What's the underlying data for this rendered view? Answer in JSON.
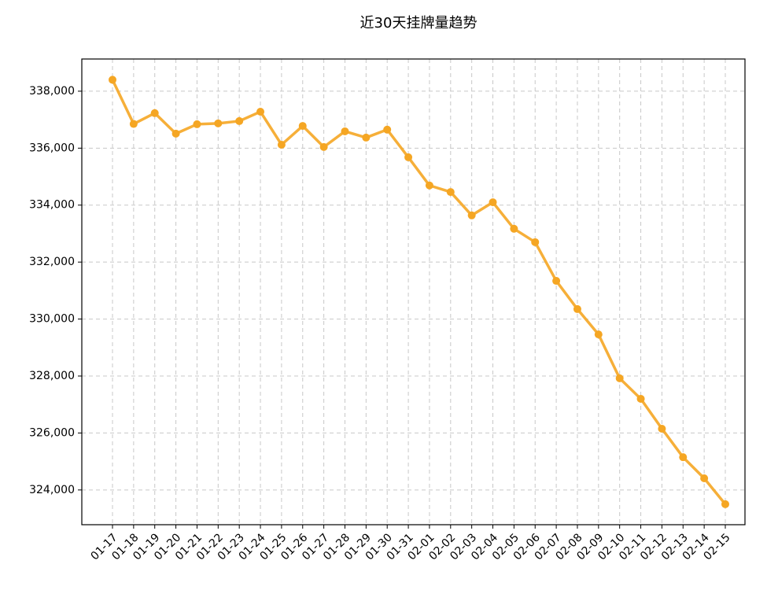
{
  "chart_data": {
    "type": "line",
    "title": "近30天挂牌量趋势",
    "categories": [
      "01-17",
      "01-18",
      "01-19",
      "01-20",
      "01-21",
      "01-22",
      "01-23",
      "01-24",
      "01-25",
      "01-26",
      "01-27",
      "01-28",
      "01-29",
      "01-30",
      "01-31",
      "02-01",
      "02-02",
      "02-03",
      "02-04",
      "02-05",
      "02-06",
      "02-07",
      "02-08",
      "02-09",
      "02-10",
      "02-11",
      "02-12",
      "02-13",
      "02-14",
      "02-15"
    ],
    "series": [
      {
        "color": "#f5a623",
        "values": [
          338400,
          336850,
          337230,
          336510,
          336840,
          336870,
          336950,
          337280,
          336120,
          336780,
          336040,
          336590,
          336370,
          336650,
          335680,
          334690,
          334460,
          333640,
          334100,
          333170,
          332700,
          331340,
          330350,
          329460,
          327920,
          327200,
          326150,
          325150,
          324410,
          323500
        ]
      }
    ],
    "ylim": [
      322780,
      339130
    ],
    "yticks": [
      {
        "value": 324000,
        "label": "324,000"
      },
      {
        "value": 326000,
        "label": "326,000"
      },
      {
        "value": 328000,
        "label": "328,000"
      },
      {
        "value": 330000,
        "label": "330,000"
      },
      {
        "value": 332000,
        "label": "332,000"
      },
      {
        "value": 334000,
        "label": "334,000"
      },
      {
        "value": 336000,
        "label": "336,000"
      },
      {
        "value": 338000,
        "label": "338,000"
      }
    ],
    "grid": true
  }
}
